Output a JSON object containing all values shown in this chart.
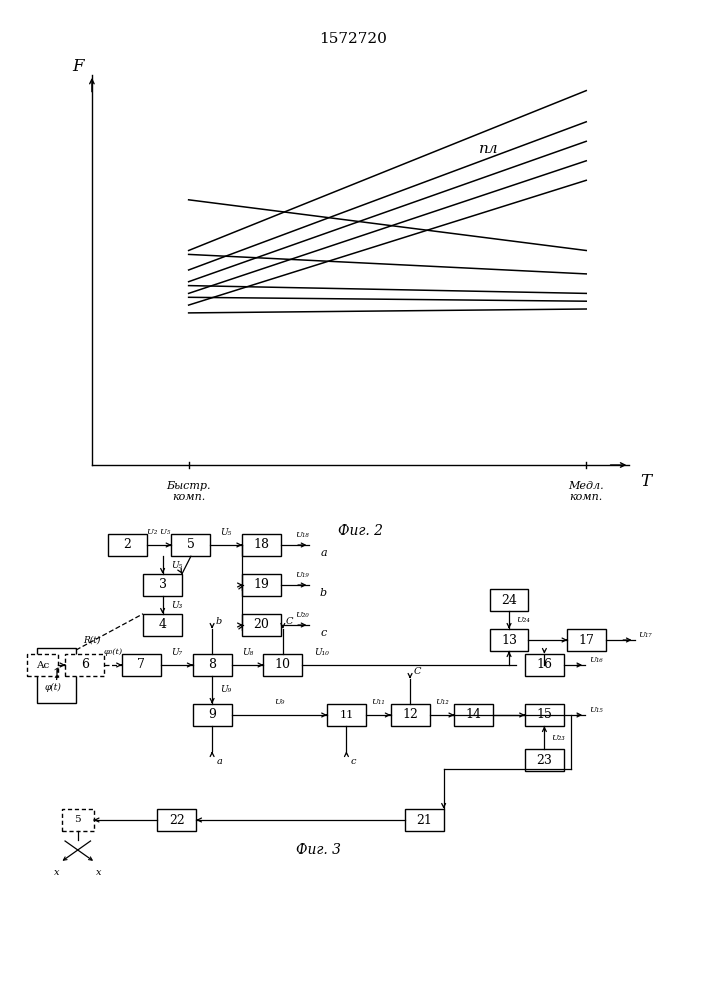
{
  "title": "1572720",
  "fig2_caption": "Фиг. 2",
  "fig3_caption": "Фиг. 3",
  "ylabel": "F",
  "xlabel": "T",
  "x_label_left": "Быстр.\nкомп.",
  "x_label_right": "Медл.\nкомп.",
  "npl_label": "пл",
  "bg": "#ffffff",
  "lc": "#000000",
  "rising_lines": [
    [
      0.18,
      0.55,
      0.92,
      0.96
    ],
    [
      0.18,
      0.5,
      0.92,
      0.88
    ],
    [
      0.18,
      0.47,
      0.92,
      0.83
    ],
    [
      0.18,
      0.44,
      0.92,
      0.78
    ],
    [
      0.18,
      0.41,
      0.92,
      0.73
    ]
  ],
  "falling_lines": [
    [
      0.18,
      0.68,
      0.92,
      0.55
    ],
    [
      0.18,
      0.54,
      0.92,
      0.49
    ],
    [
      0.18,
      0.46,
      0.92,
      0.44
    ],
    [
      0.18,
      0.43,
      0.92,
      0.42
    ],
    [
      0.18,
      0.39,
      0.92,
      0.4
    ]
  ]
}
